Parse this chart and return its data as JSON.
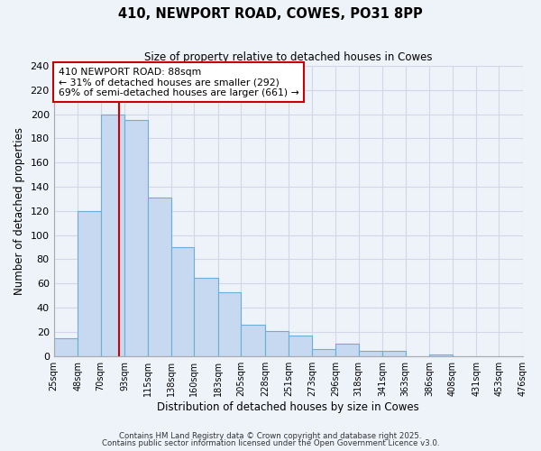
{
  "title": "410, NEWPORT ROAD, COWES, PO31 8PP",
  "subtitle": "Size of property relative to detached houses in Cowes",
  "xlabel": "Distribution of detached houses by size in Cowes",
  "ylabel": "Number of detached properties",
  "bar_color": "#c6d9f0",
  "bar_edge_color": "#6baed6",
  "background_color": "#eef2f9",
  "grid_color": "#d0d8e8",
  "bins": [
    25,
    48,
    70,
    93,
    115,
    138,
    160,
    183,
    205,
    228,
    251,
    273,
    296,
    318,
    341,
    363,
    386,
    408,
    431,
    453,
    476
  ],
  "bin_labels": [
    "25sqm",
    "48sqm",
    "70sqm",
    "93sqm",
    "115sqm",
    "138sqm",
    "160sqm",
    "183sqm",
    "205sqm",
    "228sqm",
    "251sqm",
    "273sqm",
    "296sqm",
    "318sqm",
    "341sqm",
    "363sqm",
    "386sqm",
    "408sqm",
    "431sqm",
    "453sqm",
    "476sqm"
  ],
  "values": [
    15,
    120,
    200,
    195,
    131,
    90,
    65,
    53,
    26,
    21,
    17,
    6,
    10,
    4,
    4,
    0,
    1,
    0,
    0,
    0
  ],
  "ylim": [
    0,
    240
  ],
  "yticks": [
    0,
    20,
    40,
    60,
    80,
    100,
    120,
    140,
    160,
    180,
    200,
    220,
    240
  ],
  "vline_x": 88,
  "vline_color": "#cc0000",
  "annotation_title": "410 NEWPORT ROAD: 88sqm",
  "annotation_line1": "← 31% of detached houses are smaller (292)",
  "annotation_line2": "69% of semi-detached houses are larger (661) →",
  "footnote1": "Contains HM Land Registry data © Crown copyright and database right 2025.",
  "footnote2": "Contains public sector information licensed under the Open Government Licence v3.0."
}
